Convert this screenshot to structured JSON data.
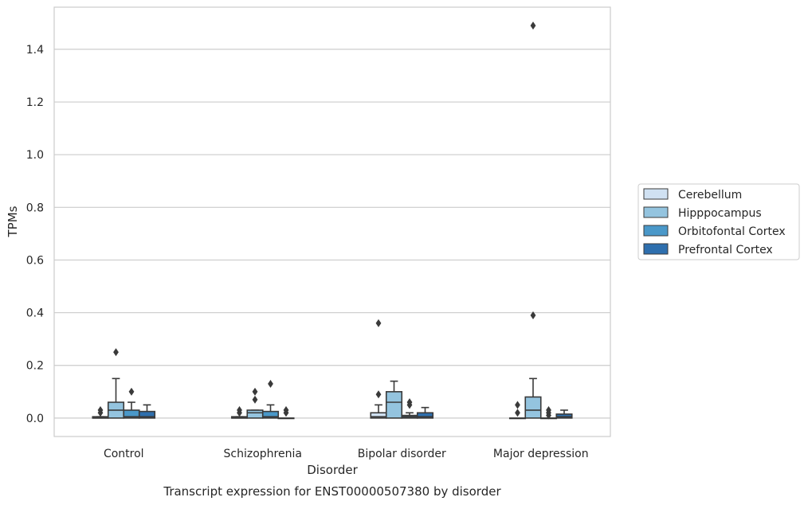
{
  "chart_data": {
    "type": "box",
    "xlabel": "Disorder",
    "ylabel": "TPMs",
    "caption": "Transcript expression for ENST00000507380 by disorder",
    "ylim": [
      -0.07,
      1.56
    ],
    "yticks": [
      0.0,
      0.2,
      0.4,
      0.6,
      0.8,
      1.0,
      1.2,
      1.4
    ],
    "ytick_labels": [
      "0.0",
      "0.2",
      "0.4",
      "0.6",
      "0.8",
      "1.0",
      "1.2",
      "1.4"
    ],
    "categories": [
      "Control",
      "Schizophrenia",
      "Bipolar disorder",
      "Major depression"
    ],
    "grid": true,
    "legend_position": "right",
    "series": [
      {
        "name": "Cerebellum",
        "color": "#d0e1f2",
        "boxes": [
          {
            "whisker_low": 0.0,
            "q1": 0.0,
            "median": 0.0,
            "q3": 0.005,
            "whisker_high": 0.005,
            "outliers": [
              0.02,
              0.03
            ]
          },
          {
            "whisker_low": 0.0,
            "q1": 0.0,
            "median": 0.0,
            "q3": 0.005,
            "whisker_high": 0.005,
            "outliers": [
              0.02,
              0.03
            ]
          },
          {
            "whisker_low": 0.0,
            "q1": 0.0,
            "median": 0.005,
            "q3": 0.02,
            "whisker_high": 0.05,
            "outliers": [
              0.09,
              0.36
            ]
          },
          {
            "whisker_low": 0.0,
            "q1": 0.0,
            "median": 0.0,
            "q3": 0.0,
            "whisker_high": 0.0,
            "outliers": [
              0.02,
              0.05
            ]
          }
        ]
      },
      {
        "name": "Hipppocampus",
        "color": "#94c4df",
        "boxes": [
          {
            "whisker_low": 0.0,
            "q1": 0.0,
            "median": 0.03,
            "q3": 0.06,
            "whisker_high": 0.15,
            "outliers": [
              0.25
            ]
          },
          {
            "whisker_low": 0.0,
            "q1": 0.0,
            "median": 0.02,
            "q3": 0.03,
            "whisker_high": 0.03,
            "outliers": [
              0.07,
              0.1
            ]
          },
          {
            "whisker_low": 0.0,
            "q1": 0.0,
            "median": 0.06,
            "q3": 0.1,
            "whisker_high": 0.14,
            "outliers": []
          },
          {
            "whisker_low": 0.0,
            "q1": 0.0,
            "median": 0.03,
            "q3": 0.08,
            "whisker_high": 0.15,
            "outliers": [
              0.39,
              1.49
            ]
          }
        ]
      },
      {
        "name": "Orbitofontal Cortex",
        "color": "#4a98c9",
        "boxes": [
          {
            "whisker_low": 0.0,
            "q1": 0.0,
            "median": 0.005,
            "q3": 0.03,
            "whisker_high": 0.06,
            "outliers": [
              0.1
            ]
          },
          {
            "whisker_low": 0.0,
            "q1": 0.0,
            "median": 0.005,
            "q3": 0.025,
            "whisker_high": 0.05,
            "outliers": [
              0.13
            ]
          },
          {
            "whisker_low": 0.0,
            "q1": 0.0,
            "median": 0.005,
            "q3": 0.01,
            "whisker_high": 0.02,
            "outliers": [
              0.05,
              0.06
            ]
          },
          {
            "whisker_low": 0.0,
            "q1": 0.0,
            "median": 0.0,
            "q3": 0.0,
            "whisker_high": 0.0,
            "outliers": [
              0.01,
              0.02,
              0.03
            ]
          }
        ]
      },
      {
        "name": "Prefrontal Cortex",
        "color": "#2e6fae",
        "boxes": [
          {
            "whisker_low": 0.0,
            "q1": 0.0,
            "median": 0.005,
            "q3": 0.025,
            "whisker_high": 0.05,
            "outliers": []
          },
          {
            "whisker_low": 0.0,
            "q1": 0.0,
            "median": 0.0,
            "q3": 0.0,
            "whisker_high": 0.0,
            "outliers": [
              0.02,
              0.03
            ]
          },
          {
            "whisker_low": 0.0,
            "q1": 0.0,
            "median": 0.005,
            "q3": 0.02,
            "whisker_high": 0.04,
            "outliers": []
          },
          {
            "whisker_low": 0.0,
            "q1": 0.0,
            "median": 0.005,
            "q3": 0.015,
            "whisker_high": 0.03,
            "outliers": []
          }
        ]
      }
    ]
  }
}
